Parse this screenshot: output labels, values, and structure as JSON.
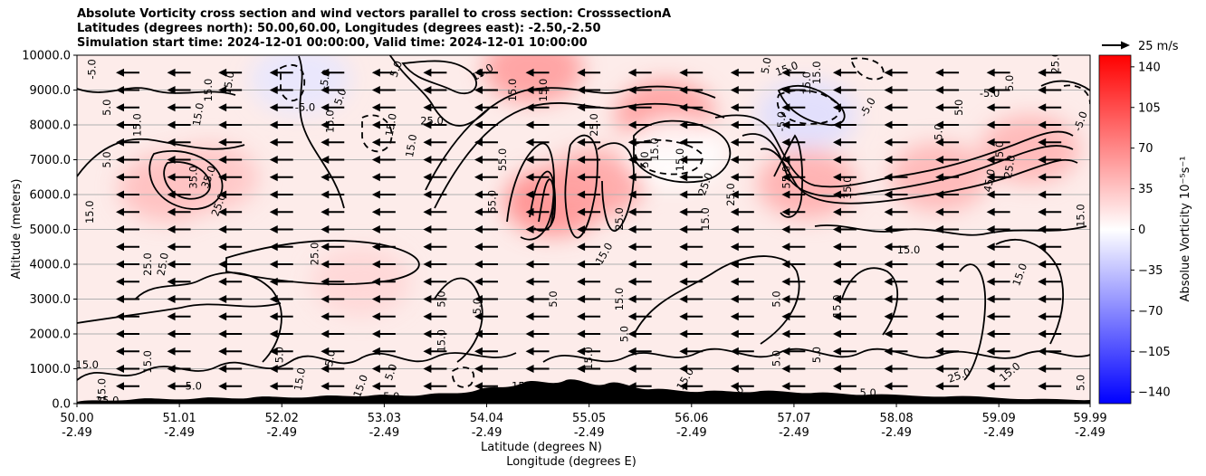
{
  "chart_data": {
    "type": "heatmap",
    "title_lines": [
      "Absolute Vorticity cross section and wind vectors parallel to cross section: CrosssectionA",
      "Latitudes (degrees north): 50.00,60.00, Longitudes (degrees east): -2.50,-2.50",
      "Simulation start time: 2024-12-01 00:00:00, Valid time: 2024-12-01 10:00:00"
    ],
    "ylabel": "Altitude (meters)",
    "xlabel_lines": [
      "Latitude (degrees N)",
      "Longitude (degrees E)"
    ],
    "xlim": [
      50.0,
      59.99
    ],
    "ylim": [
      0,
      10000
    ],
    "yticks": [
      "0.0",
      "1000.0",
      "2000.0",
      "3000.0",
      "4000.0",
      "5000.0",
      "6000.0",
      "7000.0",
      "8000.0",
      "9000.0",
      "10000.0"
    ],
    "xticks": [
      {
        "lat": "50.00",
        "lon": "-2.49",
        "v": 50.0
      },
      {
        "lat": "51.01",
        "lon": "-2.49",
        "v": 51.01
      },
      {
        "lat": "52.02",
        "lon": "-2.49",
        "v": 52.02
      },
      {
        "lat": "53.03",
        "lon": "-2.49",
        "v": 53.03
      },
      {
        "lat": "54.04",
        "lon": "-2.49",
        "v": 54.04
      },
      {
        "lat": "55.05",
        "lon": "-2.49",
        "v": 55.05
      },
      {
        "lat": "56.06",
        "lon": "-2.49",
        "v": 56.06
      },
      {
        "lat": "57.07",
        "lon": "-2.49",
        "v": 57.07
      },
      {
        "lat": "58.08",
        "lon": "-2.49",
        "v": 58.08
      },
      {
        "lat": "59.09",
        "lon": "-2.49",
        "v": 59.09
      },
      {
        "lat": "59.99",
        "lon": "-2.49",
        "v": 59.99
      }
    ],
    "grid": "horizontal",
    "colorbar": {
      "label": "Absolue Vorticity 10⁻⁵s⁻¹",
      "range": [
        -150,
        150
      ],
      "ticks": [
        "−140",
        "−105",
        "−70",
        "−35",
        "0",
        "35",
        "70",
        "105",
        "140"
      ],
      "tick_values": [
        -140,
        -105,
        -70,
        -35,
        0,
        35,
        70,
        105,
        140
      ],
      "colormap": "bwr",
      "low_color": "#0000ff",
      "mid_color": "#ffffff",
      "high_color": "#ff0000"
    },
    "quiver_key": {
      "label": "25 m/s",
      "speed": 25
    },
    "wind": {
      "direction": "towards decreasing latitude",
      "typical_speed_ms": 25
    },
    "vorticity_regions": [
      {
        "lat": 50.9,
        "alt": 6200,
        "value": 40
      },
      {
        "lat": 51.3,
        "alt": 6500,
        "value": 35
      },
      {
        "lat": 54.5,
        "alt": 9600,
        "value": 60
      },
      {
        "lat": 54.7,
        "alt": 5800,
        "value": 70
      },
      {
        "lat": 55.1,
        "alt": 6300,
        "value": 55
      },
      {
        "lat": 55.8,
        "alt": 8300,
        "value": 60
      },
      {
        "lat": 57.2,
        "alt": 6300,
        "value": 50
      },
      {
        "lat": 58.5,
        "alt": 6500,
        "value": 45
      },
      {
        "lat": 59.4,
        "alt": 7300,
        "value": 45
      },
      {
        "lat": 52.8,
        "alt": 3500,
        "value": 25
      },
      {
        "lat": 57.2,
        "alt": 8300,
        "value": -20
      },
      {
        "lat": 52.2,
        "alt": 9300,
        "value": -15
      },
      {
        "lat": 55.9,
        "alt": 7200,
        "value": 0
      }
    ],
    "contour_labels": [
      {
        "text": "-5.0",
        "lat": 50.15,
        "alt": 9600,
        "rot": -90
      },
      {
        "text": "5.0",
        "lat": 50.3,
        "alt": 8500,
        "rot": -90
      },
      {
        "text": "5.0",
        "lat": 50.3,
        "alt": 7000,
        "rot": -90
      },
      {
        "text": "15.0",
        "lat": 50.13,
        "alt": 5500,
        "rot": -90
      },
      {
        "text": "15.0",
        "lat": 50.6,
        "alt": 8000,
        "rot": -90
      },
      {
        "text": "15.0",
        "lat": 51.2,
        "alt": 8300,
        "rot": -80
      },
      {
        "text": "15.0",
        "lat": 51.3,
        "alt": 9000,
        "rot": -90
      },
      {
        "text": "15.0",
        "lat": 51.5,
        "alt": 9200,
        "rot": -80
      },
      {
        "text": "35.0",
        "lat": 51.15,
        "alt": 6500,
        "rot": -90
      },
      {
        "text": "35.0",
        "lat": 51.3,
        "alt": 6500,
        "rot": -70
      },
      {
        "text": "25.0",
        "lat": 51.4,
        "alt": 5700,
        "rot": -70
      },
      {
        "text": "25.0",
        "lat": 50.7,
        "alt": 4000,
        "rot": -90
      },
      {
        "text": "25.0",
        "lat": 50.85,
        "alt": 4000,
        "rot": -80
      },
      {
        "text": "25.0",
        "lat": 52.35,
        "alt": 4300,
        "rot": -90
      },
      {
        "text": "15.0",
        "lat": 52.5,
        "alt": 8100,
        "rot": -90
      },
      {
        "text": "5.0",
        "lat": 52.6,
        "alt": 8800,
        "rot": -70
      },
      {
        "text": "-5.0",
        "lat": 52.45,
        "alt": 9300,
        "rot": -80
      },
      {
        "text": "-5.0",
        "lat": 52.25,
        "alt": 8500,
        "rot": 0
      },
      {
        "text": "25.0",
        "lat": 53.5,
        "alt": 8100,
        "rot": 0
      },
      {
        "text": "15.0",
        "lat": 53.1,
        "alt": 8000,
        "rot": -80
      },
      {
        "text": "5.0",
        "lat": 53.15,
        "alt": 9600,
        "rot": -70
      },
      {
        "text": "15.0",
        "lat": 53.3,
        "alt": 7400,
        "rot": -80
      },
      {
        "text": "5.0",
        "lat": 53.6,
        "alt": 3000,
        "rot": -90
      },
      {
        "text": "5.0",
        "lat": 53.95,
        "alt": 2800,
        "rot": -90
      },
      {
        "text": "15.0",
        "lat": 53.6,
        "alt": 1800,
        "rot": -90
      },
      {
        "text": "15.0",
        "lat": 54.0,
        "alt": 9500,
        "rot": -30
      },
      {
        "text": "15.0",
        "lat": 54.3,
        "alt": 9000,
        "rot": -90
      },
      {
        "text": "15.0",
        "lat": 54.6,
        "alt": 9000,
        "rot": -90
      },
      {
        "text": "55.0",
        "lat": 54.2,
        "alt": 7000,
        "rot": -90
      },
      {
        "text": "55.0",
        "lat": 54.1,
        "alt": 5800,
        "rot": -90
      },
      {
        "text": "25.0",
        "lat": 55.1,
        "alt": 8000,
        "rot": -90
      },
      {
        "text": "5.0",
        "lat": 55.6,
        "alt": 7000,
        "rot": -90
      },
      {
        "text": "15.0",
        "lat": 55.7,
        "alt": 7300,
        "rot": -90
      },
      {
        "text": "15.0",
        "lat": 55.95,
        "alt": 7000,
        "rot": -90
      },
      {
        "text": "25.0",
        "lat": 56.2,
        "alt": 6300,
        "rot": -70
      },
      {
        "text": "25.0",
        "lat": 56.45,
        "alt": 6000,
        "rot": -90
      },
      {
        "text": "25.0",
        "lat": 55.35,
        "alt": 5300,
        "rot": -90
      },
      {
        "text": "15.0",
        "lat": 55.2,
        "alt": 4300,
        "rot": -60
      },
      {
        "text": "15.0",
        "lat": 55.35,
        "alt": 3000,
        "rot": -90
      },
      {
        "text": "15.0",
        "lat": 56.2,
        "alt": 5300,
        "rot": -90
      },
      {
        "text": "5.0",
        "lat": 55.4,
        "alt": 2000,
        "rot": -90
      },
      {
        "text": "5.0",
        "lat": 54.7,
        "alt": 3000,
        "rot": -90
      },
      {
        "text": "5.0",
        "lat": 56.9,
        "alt": 3000,
        "rot": -90
      },
      {
        "text": "15.0",
        "lat": 57.5,
        "alt": 2800,
        "rot": -90
      },
      {
        "text": "5.0",
        "lat": 57.3,
        "alt": 1400,
        "rot": -90
      },
      {
        "text": "5.0",
        "lat": 56.9,
        "alt": 1300,
        "rot": -90
      },
      {
        "text": "15.0",
        "lat": 57.0,
        "alt": 9600,
        "rot": -20
      },
      {
        "text": "15.0",
        "lat": 57.2,
        "alt": 9200,
        "rot": -90
      },
      {
        "text": "-5.0",
        "lat": 56.95,
        "alt": 8100,
        "rot": -90
      },
      {
        "text": "-5.0",
        "lat": 57.8,
        "alt": 8500,
        "rot": -60
      },
      {
        "text": "5.0",
        "lat": 56.8,
        "alt": 9700,
        "rot": -80
      },
      {
        "text": "15.0",
        "lat": 57.3,
        "alt": 9500,
        "rot": -90
      },
      {
        "text": "55.0",
        "lat": 57.0,
        "alt": 6500,
        "rot": -90
      },
      {
        "text": "35.0",
        "lat": 57.6,
        "alt": 6200,
        "rot": -90
      },
      {
        "text": "15.0",
        "lat": 58.2,
        "alt": 4400,
        "rot": 0
      },
      {
        "text": "-5.0",
        "lat": 59.0,
        "alt": 8900,
        "rot": 0
      },
      {
        "text": "5.0",
        "lat": 59.2,
        "alt": 9200,
        "rot": -90
      },
      {
        "text": "5.0",
        "lat": 58.7,
        "alt": 8500,
        "rot": -90
      },
      {
        "text": "5.0",
        "lat": 58.5,
        "alt": 7800,
        "rot": -90
      },
      {
        "text": "5.0",
        "lat": 59.1,
        "alt": 7300,
        "rot": -90
      },
      {
        "text": "45.0",
        "lat": 59.0,
        "alt": 6400,
        "rot": -80
      },
      {
        "text": "25.0",
        "lat": 59.2,
        "alt": 6800,
        "rot": -80
      },
      {
        "text": "15.0",
        "lat": 59.3,
        "alt": 3700,
        "rot": -70
      },
      {
        "text": "15.0",
        "lat": 59.9,
        "alt": 5400,
        "rot": -90
      },
      {
        "text": "25.0",
        "lat": 59.65,
        "alt": 9800,
        "rot": -90
      },
      {
        "text": "-5.0",
        "lat": 59.9,
        "alt": 8100,
        "rot": -70
      },
      {
        "text": "15.0",
        "lat": 50.1,
        "alt": 1100,
        "rot": 0
      },
      {
        "text": "15.0",
        "lat": 50.25,
        "alt": 400,
        "rot": -90
      },
      {
        "text": "25.0",
        "lat": 50.3,
        "alt": 80,
        "rot": 0
      },
      {
        "text": "5.0",
        "lat": 51.15,
        "alt": 500,
        "rot": 0
      },
      {
        "text": "15.0",
        "lat": 50.7,
        "alt": 1200,
        "rot": -90
      },
      {
        "text": "5.0",
        "lat": 52.0,
        "alt": 1400,
        "rot": -90
      },
      {
        "text": "5.0",
        "lat": 52.5,
        "alt": 1300,
        "rot": -80
      },
      {
        "text": "15.0",
        "lat": 52.2,
        "alt": 700,
        "rot": -80
      },
      {
        "text": "15.0",
        "lat": 52.8,
        "alt": 500,
        "rot": -70
      },
      {
        "text": "5.0",
        "lat": 53.1,
        "alt": 200,
        "rot": 0
      },
      {
        "text": "5.0",
        "lat": 53.1,
        "alt": 900,
        "rot": -70
      },
      {
        "text": "15.0",
        "lat": 54.4,
        "alt": 500,
        "rot": 0
      },
      {
        "text": "15.0",
        "lat": 55.05,
        "alt": 1300,
        "rot": -90
      },
      {
        "text": "5.0",
        "lat": 56.5,
        "alt": 300,
        "rot": -40
      },
      {
        "text": "15.0",
        "lat": 56.0,
        "alt": 700,
        "rot": -60
      },
      {
        "text": "5.0",
        "lat": 57.8,
        "alt": 300,
        "rot": 0
      },
      {
        "text": "25.0",
        "lat": 58.7,
        "alt": 800,
        "rot": -20
      },
      {
        "text": "15.0",
        "lat": 59.2,
        "alt": 900,
        "rot": -40
      },
      {
        "text": "5.0",
        "lat": 59.9,
        "alt": 600,
        "rot": -90
      },
      {
        "text": "25",
        "lat": 57.6,
        "alt": 100,
        "rot": 0
      }
    ]
  }
}
